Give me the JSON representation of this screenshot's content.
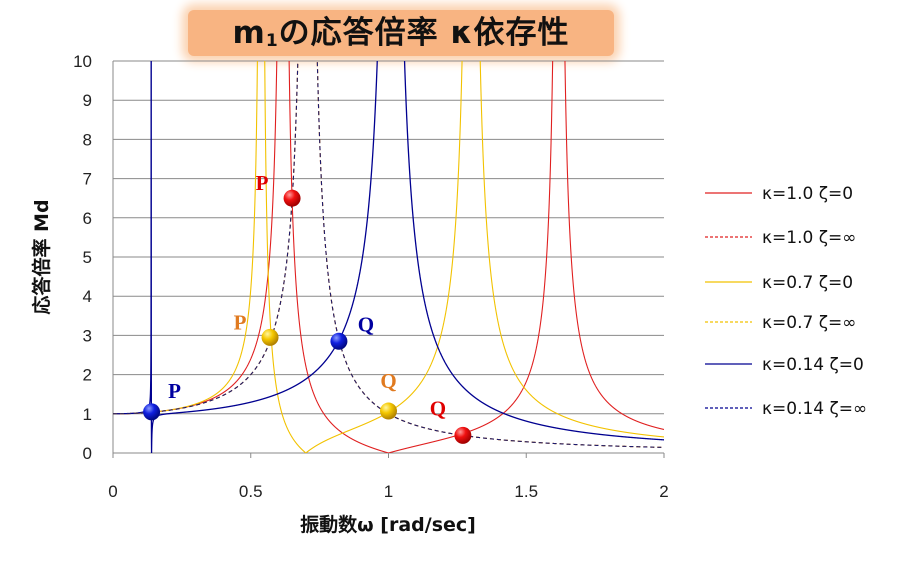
{
  "chart_data": {
    "type": "line",
    "title": {
      "main": "m",
      "sub": "1",
      "rest": "の応答倍率 κ依存性"
    },
    "xlabel": "振動数ω [rad/sec]",
    "ylabel": "応答倍率 Md",
    "xlim": [
      0,
      2
    ],
    "ylim": [
      0,
      10
    ],
    "xticks": [
      "0",
      "0.5",
      "1",
      "1.5",
      "2"
    ],
    "yticks": [
      "0",
      "1",
      "2",
      "3",
      "4",
      "5",
      "6",
      "7",
      "8",
      "9",
      "10"
    ],
    "grid": "horizontal",
    "legend_position": "right",
    "series": [
      {
        "name": "κ=1.0 ζ=0",
        "kappa": 1.0,
        "zeta": "0",
        "color": "#e02020",
        "dash": false
      },
      {
        "name": "κ=1.0 ζ=∞",
        "kappa": 1.0,
        "zeta": "∞",
        "color": "#e02020",
        "dash": true
      },
      {
        "name": "κ=0.7 ζ=0",
        "kappa": 0.7,
        "zeta": "0",
        "color": "#f2c200",
        "dash": false
      },
      {
        "name": "κ=0.7 ζ=∞",
        "kappa": 0.7,
        "zeta": "∞",
        "color": "#f2c200",
        "dash": true
      },
      {
        "name": "κ=0.14 ζ=0",
        "kappa": 0.14,
        "zeta": "0",
        "color": "#000090",
        "dash": false
      },
      {
        "name": "κ=0.14 ζ=∞",
        "kappa": 0.14,
        "zeta": "∞",
        "color": "#000090",
        "dash": true
      }
    ],
    "points": [
      {
        "label": "P",
        "x": 0.65,
        "y": 6.5,
        "color": "red",
        "label_color": "#e00000"
      },
      {
        "label": "Q",
        "x": 1.27,
        "y": 0.45,
        "color": "red",
        "label_color": "#e00000"
      },
      {
        "label": "P",
        "x": 0.57,
        "y": 2.95,
        "color": "yellow",
        "label_color": "#e07a20"
      },
      {
        "label": "Q",
        "x": 1.0,
        "y": 1.07,
        "color": "yellow",
        "label_color": "#e07a20"
      },
      {
        "label": "P",
        "x": 0.14,
        "y": 1.05,
        "color": "blue",
        "label_color": "#0000a0"
      },
      {
        "label": "Q",
        "x": 0.82,
        "y": 2.85,
        "color": "blue",
        "label_color": "#0000a0"
      }
    ]
  }
}
